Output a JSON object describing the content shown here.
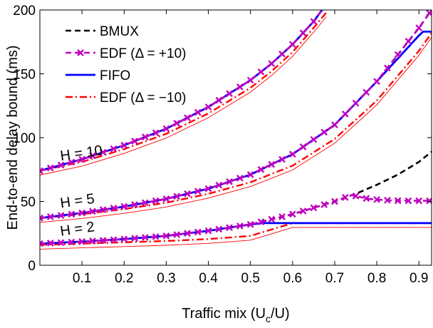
{
  "chart_data": {
    "type": "line",
    "xlabel": "Traffic mix (U",
    "xlabel_sub": "c",
    "xlabel_tail": "/U)",
    "ylabel": "End-to-end delay bound (ms)",
    "xlim": [
      0,
      0.93
    ],
    "ylim": [
      0,
      200
    ],
    "x_ticks": [
      0.1,
      0.2,
      0.3,
      0.4,
      0.5,
      0.6,
      0.7,
      0.8,
      0.9
    ],
    "x_tick_labels": [
      "0.1",
      "0.2",
      "0.3",
      "0.4",
      "0.5",
      "0.6",
      "0.7",
      "0.8",
      "0.9"
    ],
    "y_ticks": [
      0,
      50,
      100,
      150,
      200
    ],
    "y_tick_labels": [
      "0",
      "50",
      "100",
      "150",
      "200"
    ],
    "grid": false,
    "legend_placement": "top-left",
    "legend": [
      {
        "label": "BMUX",
        "color": "#000000",
        "style": "dashed"
      },
      {
        "label": "EDF (Δ = +10)",
        "color": "#bf00bf",
        "style": "dashed-x"
      },
      {
        "label": "FIFO",
        "color": "#0000ff",
        "style": "solid"
      },
      {
        "label": "EDF (Δ = −10)",
        "color": "#ff0000",
        "style": "dashdot"
      }
    ],
    "annotations": [
      {
        "text": "H = 10",
        "x": 0.05,
        "y": 82
      },
      {
        "text": "H = 5",
        "x": 0.05,
        "y": 45
      },
      {
        "text": "H = 2",
        "x": 0.05,
        "y": 23
      }
    ],
    "series": [
      {
        "name": "BMUX",
        "group": "H = 10",
        "x": [
          0,
          0.1,
          0.2,
          0.3,
          0.4,
          0.5,
          0.55,
          0.6,
          0.65,
          0.67
        ],
        "y": [
          74,
          83,
          94,
          107,
          124,
          145,
          158,
          173,
          191,
          200
        ]
      },
      {
        "name": "EDF (Δ = +10)",
        "group": "H = 10",
        "x": [
          0,
          0.1,
          0.2,
          0.3,
          0.4,
          0.5,
          0.55,
          0.6,
          0.65,
          0.67
        ],
        "y": [
          74,
          83,
          94,
          107,
          124,
          145,
          158,
          173,
          191,
          200
        ]
      },
      {
        "name": "FIFO",
        "group": "H = 10",
        "x": [
          0,
          0.1,
          0.2,
          0.3,
          0.4,
          0.5,
          0.55,
          0.6,
          0.65,
          0.67
        ],
        "y": [
          74,
          83,
          94,
          107,
          124,
          145,
          158,
          173,
          191,
          200
        ]
      },
      {
        "name": "EDF (Δ = −10)",
        "group": "H = 10",
        "x": [
          0,
          0.1,
          0.2,
          0.3,
          0.4,
          0.5,
          0.55,
          0.6,
          0.65,
          0.68
        ],
        "y": [
          74,
          81,
          91,
          103,
          119,
          139,
          152,
          167,
          186,
          198
        ]
      },
      {
        "name": "BMUX",
        "group": "H = 5",
        "x": [
          0,
          0.1,
          0.2,
          0.3,
          0.4,
          0.5,
          0.6,
          0.7,
          0.8,
          0.9,
          0.93
        ],
        "y": [
          37,
          41,
          46,
          52,
          60,
          71,
          87,
          110,
          144,
          186,
          200
        ]
      },
      {
        "name": "EDF (Δ = +10)",
        "group": "H = 5",
        "x": [
          0,
          0.1,
          0.2,
          0.3,
          0.4,
          0.5,
          0.6,
          0.7,
          0.8,
          0.9,
          0.93
        ],
        "y": [
          37,
          41,
          46,
          52,
          60,
          71,
          87,
          110,
          144,
          186,
          200
        ]
      },
      {
        "name": "FIFO",
        "group": "H = 5",
        "x": [
          0,
          0.1,
          0.2,
          0.3,
          0.4,
          0.5,
          0.6,
          0.7,
          0.8,
          0.9,
          0.91,
          0.93
        ],
        "y": [
          37,
          41,
          46,
          52,
          60,
          71,
          87,
          110,
          144,
          180,
          183,
          183
        ]
      },
      {
        "name": "EDF (Δ = −10)",
        "group": "H = 5",
        "x": [
          0,
          0.1,
          0.2,
          0.3,
          0.4,
          0.5,
          0.6,
          0.7,
          0.8,
          0.9,
          0.93
        ],
        "y": [
          37,
          40,
          44,
          49,
          56,
          65,
          78,
          99,
          129,
          168,
          182
        ]
      },
      {
        "name": "BMUX",
        "group": "H = 2",
        "x": [
          0,
          0.1,
          0.2,
          0.3,
          0.4,
          0.5,
          0.6,
          0.7,
          0.75,
          0.8,
          0.85,
          0.9,
          0.93
        ],
        "y": [
          17,
          18.5,
          20.5,
          23,
          27,
          32,
          40,
          50,
          56,
          63,
          71,
          81,
          89
        ]
      },
      {
        "name": "EDF (Δ = +10)",
        "group": "H = 2",
        "x": [
          0,
          0.1,
          0.2,
          0.3,
          0.4,
          0.5,
          0.6,
          0.7,
          0.74,
          0.78,
          0.82,
          0.86,
          0.9,
          0.93
        ],
        "y": [
          17,
          18.5,
          20.5,
          23,
          27,
          32,
          40,
          50,
          55,
          52,
          51,
          50.5,
          50.5,
          50.5
        ]
      },
      {
        "name": "FIFO",
        "group": "H = 2",
        "x": [
          0,
          0.1,
          0.2,
          0.3,
          0.4,
          0.5,
          0.53,
          0.93
        ],
        "y": [
          17,
          18.5,
          20.5,
          23,
          27,
          32,
          33,
          33
        ]
      },
      {
        "name": "EDF (Δ = −10)",
        "group": "H = 2",
        "x": [
          0,
          0.1,
          0.2,
          0.3,
          0.4,
          0.5,
          0.55,
          0.6,
          0.93
        ],
        "y": [
          16,
          17,
          18,
          19,
          20.5,
          23,
          28,
          33,
          33
        ]
      }
    ]
  }
}
